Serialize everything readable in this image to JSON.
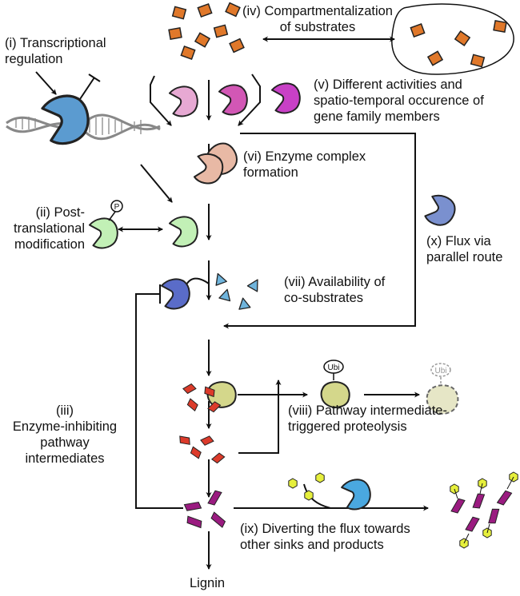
{
  "labels": {
    "i": [
      "(i) Transcriptional",
      "regulation"
    ],
    "ii": [
      "(ii) Post-",
      "translational",
      "modification"
    ],
    "iii": [
      "(iii)",
      "Enzyme-inhibiting",
      "pathway",
      "intermediates"
    ],
    "iv": [
      "(iv) Compartmentalization",
      "of substrates"
    ],
    "v": [
      "(v) Different activities and",
      "spatio-temporal occurence of",
      "gene family members"
    ],
    "vi": [
      "(vi) Enzyme complex",
      "formation"
    ],
    "vii": [
      "(vii) Availability of",
      "co-substrates"
    ],
    "viii": [
      "(viii) Pathway intermediate-",
      "triggered proteolysis"
    ],
    "ix": [
      "(ix) Diverting the flux towards",
      "other sinks and products"
    ],
    "x": [
      "(x) Flux via",
      "parallel route"
    ],
    "end": "Lignin"
  },
  "tags": {
    "phospho": "P",
    "ubiquitin": "Ubi"
  },
  "colors": {
    "substrate": "#e0782a",
    "enzyme_blue": "#5b9bd0",
    "enzyme_pink_light": "#e7a9d3",
    "enzyme_pink": "#d257b5",
    "enzyme_magenta": "#c840c6",
    "enzyme_peach": "#e8b9a5",
    "enzyme_green": "#c2f0b6",
    "enzyme_indigo": "#5a6cc8",
    "enzyme_slate": "#7a90cf",
    "enzyme_olive": "#d4d78b",
    "degraded": "#e6e6c6",
    "cosubstrate": "#6fb4dc",
    "intermediate_red": "#dc3b2b",
    "intermediate_purple": "#9a1b80",
    "sink_yellow": "#e6ef3c",
    "sink_blue": "#4aa8e0"
  }
}
